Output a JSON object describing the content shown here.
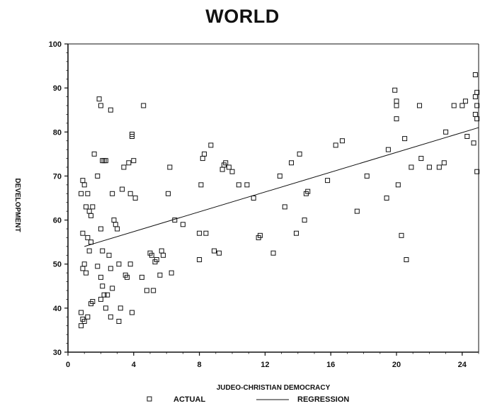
{
  "chart_data": {
    "type": "scatter",
    "title": "WORLD",
    "xlabel": "JUDEO-CHRISTIAN DEMOCRACY",
    "ylabel": "DEVELOPMENT",
    "xlim": [
      0,
      25
    ],
    "ylim": [
      30,
      100
    ],
    "xticks": [
      "0",
      "4",
      "8",
      "12",
      "16",
      "20",
      "24"
    ],
    "yticks": [
      "30",
      "40",
      "50",
      "60",
      "70",
      "80",
      "90",
      "100"
    ],
    "grid": false,
    "legend_position": "bottom",
    "legend": {
      "actual": "ACTUAL",
      "regression": "REGRESSION"
    },
    "series": [
      {
        "name": "ACTUAL",
        "marker": "open-square",
        "points": [
          [
            0.9,
            69
          ],
          [
            0.8,
            66
          ],
          [
            1.0,
            68
          ],
          [
            1.2,
            66
          ],
          [
            0.9,
            57
          ],
          [
            1.2,
            56
          ],
          [
            1.0,
            50
          ],
          [
            0.9,
            49
          ],
          [
            1.1,
            48
          ],
          [
            0.8,
            39
          ],
          [
            0.9,
            37.5
          ],
          [
            1.0,
            37
          ],
          [
            1.2,
            38
          ],
          [
            0.8,
            36
          ],
          [
            1.1,
            63
          ],
          [
            1.3,
            62
          ],
          [
            1.4,
            61
          ],
          [
            1.5,
            63
          ],
          [
            1.6,
            75
          ],
          [
            1.4,
            55
          ],
          [
            1.3,
            53
          ],
          [
            1.5,
            41.5
          ],
          [
            1.4,
            41
          ],
          [
            1.8,
            70
          ],
          [
            1.9,
            87.5
          ],
          [
            2.0,
            86
          ],
          [
            2.1,
            73.5
          ],
          [
            2.3,
            73.5
          ],
          [
            2.2,
            73.5
          ],
          [
            2.0,
            58
          ],
          [
            2.1,
            53
          ],
          [
            1.8,
            49.5
          ],
          [
            2.0,
            47
          ],
          [
            2.1,
            45
          ],
          [
            2.2,
            43
          ],
          [
            2.0,
            42
          ],
          [
            2.4,
            43
          ],
          [
            2.3,
            40
          ],
          [
            2.6,
            49
          ],
          [
            2.5,
            52
          ],
          [
            2.7,
            66
          ],
          [
            2.6,
            85
          ],
          [
            2.8,
            60
          ],
          [
            2.9,
            59
          ],
          [
            3.0,
            58
          ],
          [
            2.7,
            44.5
          ],
          [
            2.6,
            38
          ],
          [
            3.1,
            50
          ],
          [
            3.2,
            40
          ],
          [
            3.1,
            37
          ],
          [
            3.4,
            72
          ],
          [
            3.3,
            67
          ],
          [
            3.5,
            47.5
          ],
          [
            3.6,
            47
          ],
          [
            3.8,
            66
          ],
          [
            3.9,
            79.5
          ],
          [
            3.9,
            79
          ],
          [
            3.7,
            73
          ],
          [
            4.0,
            73.5
          ],
          [
            4.1,
            65
          ],
          [
            3.8,
            50
          ],
          [
            3.9,
            39
          ],
          [
            4.6,
            86
          ],
          [
            4.5,
            47
          ],
          [
            4.8,
            44
          ],
          [
            5.0,
            52.5
          ],
          [
            5.1,
            52
          ],
          [
            5.2,
            44
          ],
          [
            5.3,
            50.5
          ],
          [
            5.4,
            51
          ],
          [
            5.6,
            47.5
          ],
          [
            5.7,
            53
          ],
          [
            5.8,
            52
          ],
          [
            6.1,
            66
          ],
          [
            6.2,
            72
          ],
          [
            6.3,
            48
          ],
          [
            6.5,
            60
          ],
          [
            7.0,
            59
          ],
          [
            8.0,
            57
          ],
          [
            8.0,
            51
          ],
          [
            8.1,
            68
          ],
          [
            8.2,
            74
          ],
          [
            8.3,
            75
          ],
          [
            8.4,
            57
          ],
          [
            8.7,
            77
          ],
          [
            8.9,
            53
          ],
          [
            9.2,
            52.5
          ],
          [
            9.4,
            71.5
          ],
          [
            9.5,
            72.5
          ],
          [
            9.6,
            73
          ],
          [
            9.8,
            72
          ],
          [
            10.0,
            71
          ],
          [
            10.4,
            68
          ],
          [
            10.9,
            68
          ],
          [
            11.3,
            65
          ],
          [
            11.6,
            56
          ],
          [
            11.7,
            56.5
          ],
          [
            12.5,
            52.5
          ],
          [
            12.9,
            70
          ],
          [
            13.2,
            63
          ],
          [
            13.6,
            73
          ],
          [
            13.9,
            57
          ],
          [
            14.1,
            75
          ],
          [
            14.4,
            60
          ],
          [
            14.5,
            66
          ],
          [
            14.6,
            66.5
          ],
          [
            15.8,
            69
          ],
          [
            16.3,
            77
          ],
          [
            16.7,
            78
          ],
          [
            17.6,
            62
          ],
          [
            18.2,
            70
          ],
          [
            19.4,
            65
          ],
          [
            19.5,
            76
          ],
          [
            19.9,
            89.5
          ],
          [
            20.0,
            87
          ],
          [
            20.0,
            86
          ],
          [
            20.0,
            83
          ],
          [
            20.1,
            68
          ],
          [
            20.3,
            56.5
          ],
          [
            20.6,
            51
          ],
          [
            20.5,
            78.5
          ],
          [
            20.9,
            72
          ],
          [
            21.4,
            86
          ],
          [
            21.5,
            74
          ],
          [
            22.0,
            72
          ],
          [
            22.6,
            72
          ],
          [
            22.9,
            73
          ],
          [
            23.0,
            80
          ],
          [
            23.5,
            86
          ],
          [
            24.0,
            86
          ],
          [
            24.2,
            87
          ],
          [
            24.3,
            79
          ],
          [
            24.7,
            77.5
          ],
          [
            24.8,
            93
          ],
          [
            24.9,
            89
          ],
          [
            24.8,
            88
          ],
          [
            24.9,
            86
          ],
          [
            24.8,
            84
          ],
          [
            24.9,
            83
          ],
          [
            24.9,
            71
          ]
        ]
      },
      {
        "name": "REGRESSION",
        "line": [
          [
            1,
            54
          ],
          [
            25,
            81
          ]
        ]
      }
    ]
  }
}
